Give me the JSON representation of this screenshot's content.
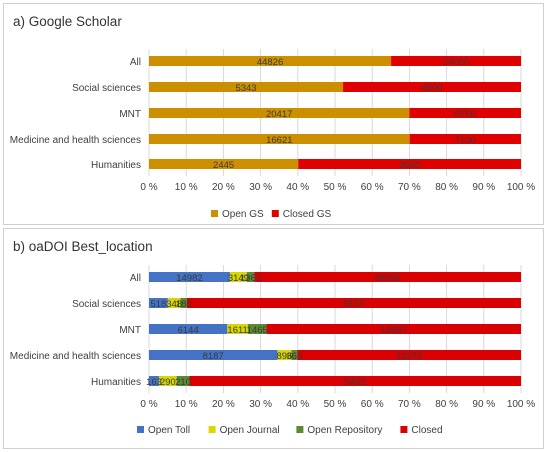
{
  "chart_data": [
    {
      "type": "bar",
      "orientation": "horizontal",
      "stacked": "100%",
      "title": "a) Google Scholar",
      "categories": [
        "All",
        "Social sciences",
        "MNT",
        "Medicine and health sciences",
        "Humanities"
      ],
      "series": [
        {
          "name": "Open GS",
          "color": "#CC8F00",
          "values": [
            44826,
            5343,
            20417,
            16621,
            2445
          ],
          "labels": [
            "44826",
            "5343",
            "20417",
            "16621",
            "2445"
          ]
        },
        {
          "name": "Closed GS",
          "color": "#E00000",
          "values": [
            24060,
            4900,
            8750,
            7100,
            3650
          ],
          "labels": [
            "24060",
            "4900",
            "8750",
            "7100",
            "3650"
          ]
        }
      ],
      "xticks": [
        "0 %",
        "10 %",
        "20 %",
        "30 %",
        "40 %",
        "50 %",
        "60 %",
        "70 %",
        "80 %",
        "90 %",
        "100 %"
      ],
      "legend_position": "bottom"
    },
    {
      "type": "bar",
      "orientation": "horizontal",
      "stacked": "100%",
      "title": "b) oaDOI Best_location",
      "categories": [
        "All",
        "Social sciences",
        "MNT",
        "Medicine and health sciences",
        "Humanities"
      ],
      "series": [
        {
          "name": "Open Toll",
          "color": "#4472C4",
          "values": [
            14982,
            518,
            6144,
            8187,
            163
          ],
          "labels": [
            "14982",
            "518",
            "6144",
            "8187",
            "163"
          ]
        },
        {
          "name": "Open Journal",
          "color": "#D8D800",
          "values": [
            3149,
            348,
            1611,
            896,
            290
          ],
          "labels": [
            "3149",
            "348",
            "1611",
            "896",
            "290"
          ]
        },
        {
          "name": "Open Repository",
          "color": "#5C8A30",
          "values": [
            1363,
            180,
            1465,
            366,
            210
          ],
          "labels": [
            "1363",
            "180",
            "1465",
            "366",
            "210"
          ]
        },
        {
          "name": "Closed",
          "color": "#D80000",
          "values": [
            49392,
            9197,
            19947,
            14272,
            5432
          ],
          "labels": [
            "49392",
            "9197",
            "19947",
            "14272",
            "5432"
          ]
        }
      ],
      "xticks": [
        "0 %",
        "10 %",
        "20 %",
        "30 %",
        "40 %",
        "50 %",
        "60 %",
        "70 %",
        "80 %",
        "90 %",
        "100 %"
      ],
      "legend_position": "bottom"
    }
  ]
}
